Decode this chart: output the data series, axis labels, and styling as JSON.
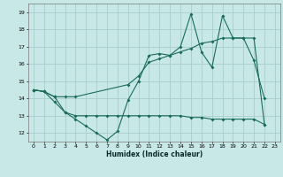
{
  "xlabel": "Humidex (Indice chaleur)",
  "xlim": [
    -0.5,
    23.5
  ],
  "ylim": [
    11.5,
    19.5
  ],
  "yticks": [
    12,
    13,
    14,
    15,
    16,
    17,
    18,
    19
  ],
  "xticks": [
    0,
    1,
    2,
    3,
    4,
    5,
    6,
    7,
    8,
    9,
    10,
    11,
    12,
    13,
    14,
    15,
    16,
    17,
    18,
    19,
    20,
    21,
    22,
    23
  ],
  "bg_color": "#c8e8e8",
  "line_color": "#1a6b5a",
  "grid_color": "#a8cccc",
  "lineA_x": [
    0,
    1,
    2,
    3,
    4,
    5,
    6,
    7,
    8,
    9,
    10,
    11,
    12,
    13,
    14,
    15,
    16,
    17,
    18,
    19,
    20,
    21,
    22
  ],
  "lineA_y": [
    14.5,
    14.4,
    13.8,
    13.2,
    12.8,
    12.4,
    12.0,
    11.6,
    12.1,
    13.9,
    15.0,
    16.5,
    16.6,
    16.5,
    17.0,
    18.9,
    16.7,
    15.8,
    18.8,
    17.5,
    17.5,
    16.2,
    14.0
  ],
  "lineB_x": [
    0,
    1,
    2,
    3,
    4,
    9,
    10,
    11,
    12,
    13,
    14,
    15,
    16,
    17,
    18,
    19,
    20,
    21,
    22
  ],
  "lineB_y": [
    14.5,
    14.4,
    14.1,
    14.1,
    14.1,
    14.8,
    15.3,
    16.1,
    16.3,
    16.5,
    16.7,
    16.9,
    17.2,
    17.3,
    17.5,
    17.5,
    17.5,
    17.5,
    12.5
  ],
  "lineC_x": [
    0,
    1,
    2,
    3,
    4,
    5,
    6,
    7,
    8,
    9,
    10,
    11,
    12,
    13,
    14,
    15,
    16,
    17,
    18,
    19,
    20,
    21,
    22
  ],
  "lineC_y": [
    14.5,
    14.4,
    14.1,
    13.2,
    13.0,
    13.0,
    13.0,
    13.0,
    13.0,
    13.0,
    13.0,
    13.0,
    13.0,
    13.0,
    13.0,
    12.9,
    12.9,
    12.8,
    12.8,
    12.8,
    12.8,
    12.8,
    12.5
  ]
}
